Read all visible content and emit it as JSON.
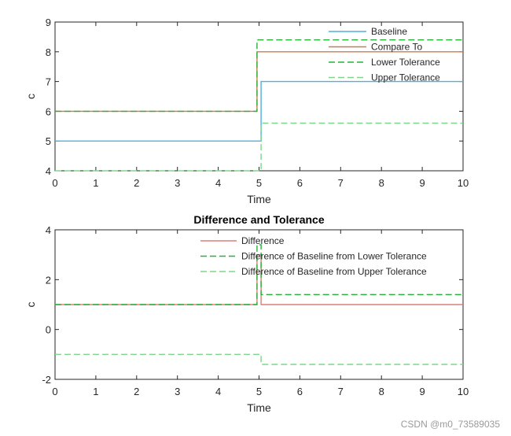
{
  "chart_data": [
    {
      "type": "line",
      "title": "",
      "xlabel": "Time",
      "ylabel": "c",
      "xlim": [
        0,
        10
      ],
      "ylim": [
        4,
        9
      ],
      "xticks": [
        "0",
        "1",
        "2",
        "3",
        "4",
        "5",
        "6",
        "7",
        "8",
        "9",
        "10"
      ],
      "yticks": [
        "4",
        "5",
        "6",
        "7",
        "8",
        "9"
      ],
      "legend_position": "top-right",
      "series": [
        {
          "name": "Baseline",
          "color": "#4fb0dd",
          "style": "solid",
          "x": [
            0,
            5,
            5.05,
            5.05,
            10
          ],
          "y": [
            5,
            5,
            5,
            7,
            7
          ]
        },
        {
          "name": "Compare To",
          "color": "#cc7b4c",
          "style": "solid",
          "x": [
            0,
            4.95,
            4.95,
            10
          ],
          "y": [
            6,
            6,
            8,
            8
          ]
        },
        {
          "name": "Lower Tolerance",
          "color": "#27b33a",
          "style": "dashed",
          "x": [
            0,
            4.95,
            4.95,
            10
          ],
          "y": [
            6,
            6,
            8.4,
            8.4
          ]
        },
        {
          "name": "Upper Tolerance",
          "color": "#7fd68a",
          "style": "dashed",
          "x": [
            0,
            5,
            5.05,
            5.05,
            10
          ],
          "y": [
            4,
            4,
            4,
            5.6,
            5.6
          ]
        }
      ]
    },
    {
      "type": "line",
      "title": "Difference and Tolerance",
      "xlabel": "Time",
      "ylabel": "c",
      "xlim": [
        0,
        10
      ],
      "ylim": [
        -2,
        4
      ],
      "xticks": [
        "0",
        "1",
        "2",
        "3",
        "4",
        "5",
        "6",
        "7",
        "8",
        "9",
        "10"
      ],
      "yticks": [
        "-2",
        "0",
        "2",
        "4"
      ],
      "legend_position": "top-right",
      "series": [
        {
          "name": "Difference",
          "color": "#d9807a",
          "style": "solid",
          "x": [
            0,
            4.95,
            4.95,
            5.05,
            5.05,
            10
          ],
          "y": [
            1,
            1,
            3,
            3,
            1,
            1
          ]
        },
        {
          "name": "Difference of Baseline from Lower Tolerance",
          "color": "#27b33a",
          "style": "dashed",
          "x": [
            0,
            4.95,
            4.95,
            5.05,
            5.05,
            10
          ],
          "y": [
            1,
            1,
            3.4,
            3.4,
            1.4,
            1.4
          ]
        },
        {
          "name": "Difference of Baseline from Upper Tolerance",
          "color": "#7fd68a",
          "style": "dashed",
          "x": [
            0,
            5,
            5.05,
            5.05,
            10
          ],
          "y": [
            -1,
            -1,
            -1,
            -1.4,
            -1.4
          ]
        }
      ]
    }
  ],
  "watermark": "CSDN @m0_73589035"
}
